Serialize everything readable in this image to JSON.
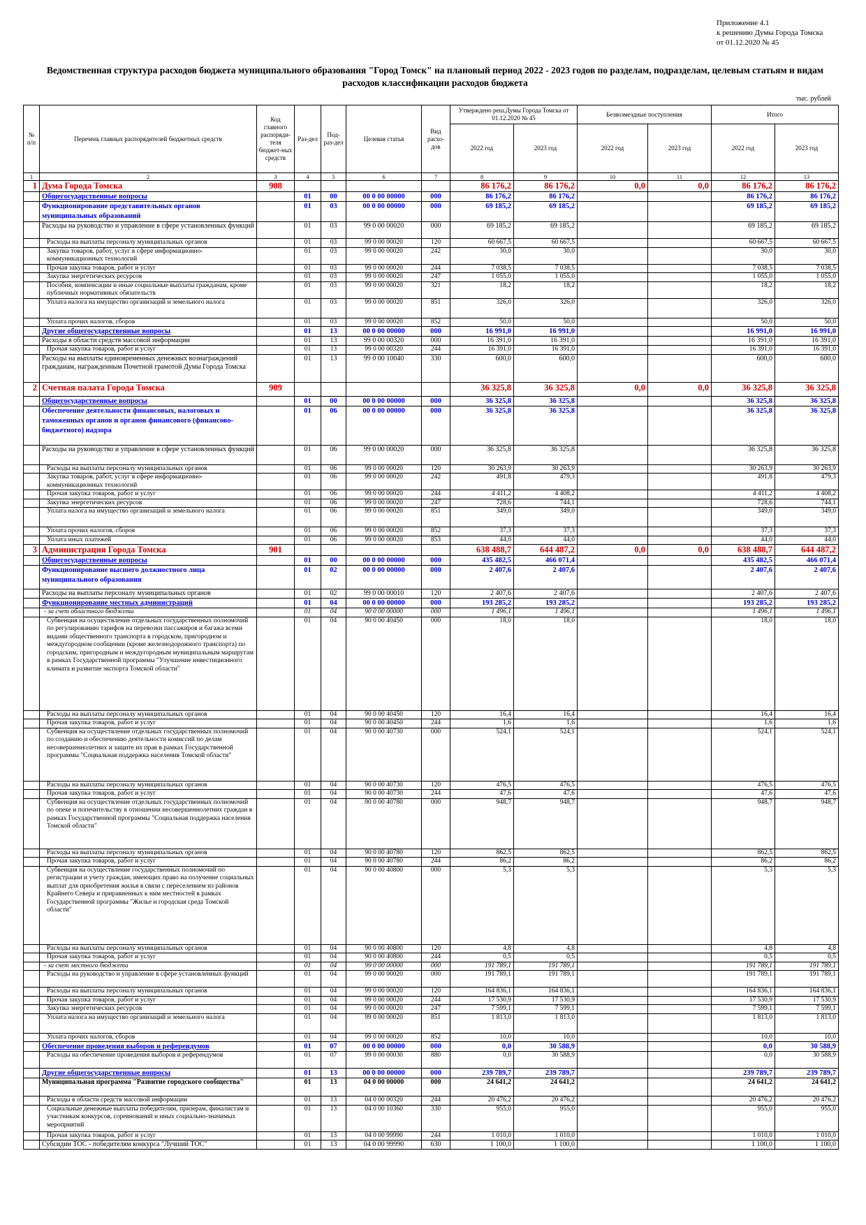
{
  "appendix": {
    "line1": "Приложение 4.1",
    "line2": "к решению Думы Города Томска",
    "line3": "от 01.12.2020 № 45"
  },
  "title": "Ведомственная структура расходов бюджета муниципального образования \"Город Томск\" на плановый период 2022 - 2023 годов по разделам, подразделам, целевым статьям и видам расходов классификации расходов бюджета",
  "units": "тыс. рублей",
  "header": {
    "num": "№ п/п",
    "name": "Перечень главных распорядителей бюджетных средств",
    "code": "Код главного распоряди-теля бюджет-ных средств",
    "razdel": "Раз-дел",
    "podrazdel": "Под-раз-дел",
    "celevaya": "Целевая статья",
    "vid": "Вид расхо-дов",
    "group_approved": "Утверждено реш.Думы Города Томска от 01.12.2020 № 45",
    "group_free": "Безвозмездные поступления",
    "group_total": "Итого",
    "y2022": "2022 год",
    "y2023": "2023 год",
    "colnums": [
      "1",
      "2",
      "3",
      "4",
      "5",
      "6",
      "7",
      "8",
      "9",
      "10",
      "11",
      "12",
      "13"
    ]
  },
  "rows": [
    {
      "t": "l0",
      "idx": "1",
      "name": "Дума Города Томска",
      "code": "908",
      "r": "",
      "p": "",
      "cs": "",
      "v": "",
      "a22": "86 176,2",
      "a23": "86 176,2",
      "f22": "0,0",
      "f23": "0,0",
      "t22": "86 176,2",
      "t23": "86 176,2"
    },
    {
      "t": "l1",
      "name": "Общегосударственные вопросы",
      "r": "01",
      "p": "00",
      "cs": "00 0 00 00000",
      "v": "000",
      "a22": "86 176,2",
      "a23": "86 176,2",
      "t22": "86 176,2",
      "t23": "86 176,2"
    },
    {
      "t": "l2",
      "name": "Функционирование представительных органов муниципальных образований",
      "r": "01",
      "p": "03",
      "cs": "00 0 00 00000",
      "v": "000",
      "a22": "69 185,2",
      "a23": "69 185,2",
      "t22": "69 185,2",
      "t23": "69 185,2",
      "h": 28
    },
    {
      "t": "l3",
      "name": "Расходы на руководство и управление в сфере установленных функций",
      "r": "01",
      "p": "03",
      "cs": "99 0 00 00020",
      "v": "000",
      "a22": "69 185,2",
      "a23": "69 185,2",
      "t22": "69 185,2",
      "t23": "69 185,2",
      "h": 24
    },
    {
      "t": "l4",
      "name": "Расходы на выплаты персоналу муниципальных органов",
      "r": "01",
      "p": "03",
      "cs": "99 0 00 00020",
      "v": "120",
      "a22": "60 667,5",
      "a23": "60 667,5",
      "t22": "60 667,5",
      "t23": "60 667,5"
    },
    {
      "t": "l4",
      "name": "Закупка товаров, работ, услуг в сфере информационно-коммуникационных технологий",
      "r": "01",
      "p": "03",
      "cs": "99 0 00 00020",
      "v": "242",
      "a22": "30,0",
      "a23": "30,0",
      "t22": "30,0",
      "t23": "30,0",
      "h": 24
    },
    {
      "t": "l4",
      "name": "Прочая закупка товаров, работ и услуг",
      "r": "01",
      "p": "03",
      "cs": "99 0 00 00020",
      "v": "244",
      "a22": "7 038,5",
      "a23": "7 038,5",
      "t22": "7 038,5",
      "t23": "7 038,5"
    },
    {
      "t": "l4",
      "name": "Закупка энергетических ресурсов",
      "r": "01",
      "p": "03",
      "cs": "99 0 00 00020",
      "v": "247",
      "a22": "1 055,0",
      "a23": "1 055,0",
      "t22": "1 055,0",
      "t23": "1 055,0"
    },
    {
      "t": "l4",
      "name": "Пособия, компенсации и иные социальные выплаты гражданам, кроме публичных нормативных обязательств",
      "r": "01",
      "p": "03",
      "cs": "99 0 00 00020",
      "v": "321",
      "a22": "18,2",
      "a23": "18,2",
      "t22": "18,2",
      "t23": "18,2",
      "h": 24
    },
    {
      "t": "l4",
      "name": "Уплата налога на имущество организаций и земельного налога",
      "r": "01",
      "p": "03",
      "cs": "99 0 00 00020",
      "v": "851",
      "a22": "326,0",
      "a23": "326,0",
      "t22": "326,0",
      "t23": "326,0",
      "h": 28
    },
    {
      "t": "l4",
      "name": "Уплата прочих налогов, сборов",
      "r": "01",
      "p": "03",
      "cs": "99 0 00 00020",
      "v": "852",
      "a22": "50,0",
      "a23": "50,0",
      "t22": "50,0",
      "t23": "50,0"
    },
    {
      "t": "l1",
      "name": "Другие общегосударственные вопросы",
      "r": "01",
      "p": "13",
      "cs": "00 0 00 00000",
      "v": "000",
      "a22": "16 991,0",
      "a23": "16 991,0",
      "t22": "16 991,0",
      "t23": "16 991,0"
    },
    {
      "t": "l3",
      "name": "Расходы в области средств массовой информации",
      "r": "01",
      "p": "13",
      "cs": "99 0 00 00320",
      "v": "000",
      "a22": "16 391,0",
      "a23": "16 391,0",
      "t22": "16 391,0",
      "t23": "16 391,0"
    },
    {
      "t": "l4",
      "name": "Прочая закупка товаров, работ и услуг",
      "r": "01",
      "p": "13",
      "cs": "99 0 00 00320",
      "v": "244",
      "a22": "16 391,0",
      "a23": "16 391,0",
      "t22": "16 391,0",
      "t23": "16 391,0"
    },
    {
      "t": "l3",
      "name": "Расходы на выплаты единовременных денежных вознаграждений гражданам, награжденным Почетной грамотой Думы Города Томска",
      "r": "01",
      "p": "13",
      "cs": "99 0 00 10040",
      "v": "330",
      "a22": "600,0",
      "a23": "600,0",
      "t22": "600,0",
      "t23": "600,0",
      "h": 40
    },
    {
      "t": "l0",
      "idx": "2",
      "name": "Счетная палата Города Томска",
      "code": "909",
      "r": "",
      "p": "",
      "cs": "",
      "v": "",
      "a22": "36 325,8",
      "a23": "36 325,8",
      "f22": "0,0",
      "f23": "0,0",
      "t22": "36 325,8",
      "t23": "36 325,8",
      "h": 20
    },
    {
      "t": "l1",
      "name": "Общегосударственные вопросы",
      "r": "01",
      "p": "00",
      "cs": "00 0 00 00000",
      "v": "000",
      "a22": "36 325,8",
      "a23": "36 325,8",
      "t22": "36 325,8",
      "t23": "36 325,8"
    },
    {
      "t": "l2",
      "name": "Обеспечение деятельности финансовых, налоговых и таможенных органов и органов финансового (финансово-бюджетного) надзора",
      "r": "01",
      "p": "06",
      "cs": "00 0 00 00000",
      "v": "000",
      "a22": "36 325,8",
      "a23": "36 325,8",
      "t22": "36 325,8",
      "t23": "36 325,8",
      "h": 56
    },
    {
      "t": "l3",
      "name": "Расходы на руководство и управление в сфере установленных функций",
      "r": "01",
      "p": "06",
      "cs": "99 0 00 00020",
      "v": "000",
      "a22": "36 325,8",
      "a23": "36 325,8",
      "t22": "36 325,8",
      "t23": "36 325,8",
      "h": 28
    },
    {
      "t": "l4",
      "name": "Расходы на выплаты персоналу муниципальных органов",
      "r": "01",
      "p": "06",
      "cs": "99 0 00 00020",
      "v": "120",
      "a22": "30 263,9",
      "a23": "30 263,9",
      "t22": "30 263,9",
      "t23": "30 263,9"
    },
    {
      "t": "l4",
      "name": "Закупка товаров, работ, услуг в сфере информационно-коммуникационных технологий",
      "r": "01",
      "p": "06",
      "cs": "99 0 00 00020",
      "v": "242",
      "a22": "491,8",
      "a23": "479,3",
      "t22": "491,8",
      "t23": "479,3",
      "h": 24
    },
    {
      "t": "l4",
      "name": "Прочая закупка товаров, работ и услуг",
      "r": "01",
      "p": "06",
      "cs": "99 0 00 00020",
      "v": "244",
      "a22": "4 411,2",
      "a23": "4 408,2",
      "t22": "4 411,2",
      "t23": "4 408,2"
    },
    {
      "t": "l4",
      "name": "Закупка энергетических ресурсов",
      "r": "01",
      "p": "06",
      "cs": "99 0 00 00020",
      "v": "247",
      "a22": "728,6",
      "a23": "744,1",
      "t22": "728,6",
      "t23": "744,1"
    },
    {
      "t": "l4",
      "name": "Уплата налога на имущество организаций и земельного налога",
      "r": "01",
      "p": "06",
      "cs": "99 0 00 00020",
      "v": "851",
      "a22": "349,0",
      "a23": "349,0",
      "t22": "349,0",
      "t23": "349,0",
      "h": 28
    },
    {
      "t": "l4",
      "name": "Уплата прочих налогов, сборов",
      "r": "01",
      "p": "06",
      "cs": "99 0 00 00020",
      "v": "852",
      "a22": "37,3",
      "a23": "37,3",
      "t22": "37,3",
      "t23": "37,3"
    },
    {
      "t": "l4",
      "name": "Уплата иных платежей",
      "r": "01",
      "p": "06",
      "cs": "99 0 00 00020",
      "v": "853",
      "a22": "44,0",
      "a23": "44,0",
      "t22": "44,0",
      "t23": "44,0"
    },
    {
      "t": "l0",
      "idx": "3",
      "name": "Администрация Города Томска",
      "code": "901",
      "r": "",
      "p": "",
      "cs": "",
      "v": "",
      "a22": "638 488,7",
      "a23": "644 487,2",
      "f22": "0,0",
      "f23": "0,0",
      "t22": "638 488,7",
      "t23": "644 487,2"
    },
    {
      "t": "l1",
      "name": "Общегосударственные вопросы",
      "r": "01",
      "p": "00",
      "cs": "00 0 00 00000",
      "v": "000",
      "a22": "435 482,5",
      "a23": "466 071,4",
      "t22": "435 482,5",
      "t23": "466 071,4"
    },
    {
      "t": "l2",
      "name": "Функционирование высшего должностного лица муниципального образования",
      "r": "01",
      "p": "02",
      "cs": "00 0 00 00000",
      "v": "000",
      "a22": "2 407,6",
      "a23": "2 407,6",
      "t22": "2 407,6",
      "t23": "2 407,6",
      "h": 34
    },
    {
      "t": "l3",
      "name": "Расходы на выплаты персоналу муниципальных органов",
      "r": "01",
      "p": "02",
      "cs": "99 0 00 00010",
      "v": "120",
      "a22": "2 407,6",
      "a23": "2 407,6",
      "t22": "2 407,6",
      "t23": "2 407,6"
    },
    {
      "t": "l1",
      "name": "Функционирование местных администраций",
      "r": "01",
      "p": "04",
      "cs": "00 0 00 00000",
      "v": "000",
      "a22": "193 285,2",
      "a23": "193 285,2",
      "t22": "193 285,2",
      "t23": "193 285,2"
    },
    {
      "t": "it",
      "name": "- за счет областного бюджета",
      "r": "01",
      "p": "04",
      "cs": "90 0 00 00000",
      "v": "000",
      "a22": "1 496,1",
      "a23": "1 496,1",
      "t22": "1 496,1",
      "t23": "1 496,1"
    },
    {
      "t": "l4",
      "name": "Субвенция на осуществление отдельных государственных полномочий по регулированию тарифов на перевозки пассажиров и багажа всеми видами общественного транспорта в городском, пригородном и междугородном сообщении (кроме железнодорожного транспорта) по городским, пригородным и междугородным муниципальным маршрутам в рамках Государственной программы \"Улучшение инвестиционного климата и развитие экспорта Томской области\"",
      "r": "01",
      "p": "04",
      "cs": "90 0 00 40450",
      "v": "000",
      "a22": "18,0",
      "a23": "18,0",
      "t22": "18,0",
      "t23": "18,0",
      "h": 134
    },
    {
      "t": "l4",
      "name": "Расходы на выплаты персоналу муниципальных органов",
      "r": "01",
      "p": "04",
      "cs": "90 0 00 40450",
      "v": "120",
      "a22": "16,4",
      "a23": "16,4",
      "t22": "16,4",
      "t23": "16,4"
    },
    {
      "t": "l4",
      "name": "Прочая закупка товаров, работ и услуг",
      "r": "01",
      "p": "04",
      "cs": "90 0 00 40450",
      "v": "244",
      "a22": "1,6",
      "a23": "1,6",
      "t22": "1,6",
      "t23": "1,6"
    },
    {
      "t": "l4",
      "name": "Субвенция на осуществление отдельных государственных полномочий по созданию и обеспечению деятельности комиссий по делам несовершеннолетних и защите их прав в рамках Государственной программы \"Социальная поддержка населения Томской области\"",
      "r": "01",
      "p": "04",
      "cs": "90 0 00 40730",
      "v": "000",
      "a22": "524,1",
      "a23": "524,1",
      "t22": "524,1",
      "t23": "524,1",
      "h": 76
    },
    {
      "t": "l4",
      "name": "Расходы на выплаты персоналу муниципальных органов",
      "r": "01",
      "p": "04",
      "cs": "90 0 00 40730",
      "v": "120",
      "a22": "476,5",
      "a23": "476,5",
      "t22": "476,5",
      "t23": "476,5"
    },
    {
      "t": "l4",
      "name": "Прочая закупка товаров, работ и услуг",
      "r": "01",
      "p": "04",
      "cs": "90 0 00 40730",
      "v": "244",
      "a22": "47,6",
      "a23": "47,6",
      "t22": "47,6",
      "t23": "47,6"
    },
    {
      "t": "l4",
      "name": "Субвенция на осуществление отдельных государственных полномочий по опеке и попечительству в отношении несовершеннолетних граждан в рамках Государственной программы \"Социальная поддержка населения Томской области\"",
      "r": "01",
      "p": "04",
      "cs": "90 0 00 40780",
      "v": "000",
      "a22": "948,7",
      "a23": "948,7",
      "t22": "948,7",
      "t23": "948,7",
      "h": 72
    },
    {
      "t": "l4",
      "name": "Расходы на выплаты персоналу муниципальных органов",
      "r": "01",
      "p": "04",
      "cs": "90 0 00 40780",
      "v": "120",
      "a22": "862,5",
      "a23": "862,5",
      "t22": "862,5",
      "t23": "862,5"
    },
    {
      "t": "l4",
      "name": "Прочая закупка товаров, работ и услуг",
      "r": "01",
      "p": "04",
      "cs": "90 0 00 40780",
      "v": "244",
      "a22": "86,2",
      "a23": "86,2",
      "t22": "86,2",
      "t23": "86,2"
    },
    {
      "t": "l4",
      "name": "Субвенция на осуществление государственных полномочий по регистрации и учету граждан, имеющих право на получение социальных выплат для приобретения жилья в связи с переселением из районов Крайнего Севера и приравненных к ним местностей в рамках Государственной программы \"Жилье и городская среда Томской области\"",
      "r": "01",
      "p": "04",
      "cs": "90 0 00 40800",
      "v": "000",
      "a22": "5,3",
      "a23": "5,3",
      "t22": "5,3",
      "t23": "5,3",
      "h": 112
    },
    {
      "t": "l4",
      "name": "Расходы на выплаты персоналу муниципальных органов",
      "r": "01",
      "p": "04",
      "cs": "90 0 00 40800",
      "v": "120",
      "a22": "4,8",
      "a23": "4,8",
      "t22": "4,8",
      "t23": "4,8"
    },
    {
      "t": "l4",
      "name": "Прочая закупка товаров, работ и услуг",
      "r": "01",
      "p": "04",
      "cs": "90 0 00 40800",
      "v": "244",
      "a22": "0,5",
      "a23": "0,5",
      "t22": "0,5",
      "t23": "0,5"
    },
    {
      "t": "it",
      "name": "- за счет местного бюджета",
      "r": "01",
      "p": "04",
      "cs": "99 0 00 00000",
      "v": "000",
      "a22": "191 789,1",
      "a23": "191 789,1",
      "t22": "191 789,1",
      "t23": "191 789,1"
    },
    {
      "t": "l4",
      "name": "Расходы на руководство и управление в сфере установленных функций",
      "r": "01",
      "p": "04",
      "cs": "99 0 00 00020",
      "v": "000",
      "a22": "191 789,1",
      "a23": "191 789,1",
      "t22": "191 789,1",
      "t23": "191 789,1",
      "h": 24
    },
    {
      "t": "l4",
      "name": "Расходы на выплаты персоналу муниципальных органов",
      "r": "01",
      "p": "04",
      "cs": "99 0 00 00020",
      "v": "120",
      "a22": "164 836,1",
      "a23": "164 836,1",
      "t22": "164 836,1",
      "t23": "164 836,1"
    },
    {
      "t": "l4",
      "name": "Прочая закупка товаров, работ и услуг",
      "r": "01",
      "p": "04",
      "cs": "99 0 00 00020",
      "v": "244",
      "a22": "17 530,9",
      "a23": "17 530,9",
      "t22": "17 530,9",
      "t23": "17 530,9"
    },
    {
      "t": "l4",
      "name": "Закупка энергетических ресурсов",
      "r": "01",
      "p": "04",
      "cs": "99 0 00 00020",
      "v": "247",
      "a22": "7 599,1",
      "a23": "7 599,1",
      "t22": "7 599,1",
      "t23": "7 599,1"
    },
    {
      "t": "l4",
      "name": "Уплата налога на имущество организаций и земельного налога",
      "r": "01",
      "p": "04",
      "cs": "99 0 00 00020",
      "v": "851",
      "a22": "1 813,0",
      "a23": "1 813,0",
      "t22": "1 813,0",
      "t23": "1 813,0",
      "h": 28
    },
    {
      "t": "l4",
      "name": "Уплата прочих налогов, сборов",
      "r": "01",
      "p": "04",
      "cs": "99 0 00 00020",
      "v": "852",
      "a22": "10,0",
      "a23": "10,0",
      "t22": "10,0",
      "t23": "10,0"
    },
    {
      "t": "l1",
      "name": "Обеспечение проведения выборов и референдумов",
      "r": "01",
      "p": "07",
      "cs": "00 0 00 00000",
      "v": "000",
      "a22": "0,0",
      "a23": "30 588,9",
      "t22": "0,0",
      "t23": "30 588,9"
    },
    {
      "t": "l4",
      "name": "Расходы на обеспечение проведения выборов и референдумов",
      "r": "01",
      "p": "07",
      "cs": "99 0 00 00030",
      "v": "880",
      "a22": "0,0",
      "a23": "30 588,9",
      "t22": "0,0",
      "t23": "30 588,9",
      "h": 24
    },
    {
      "t": "l1",
      "name": "Другие общегосударственные вопросы",
      "r": "01",
      "p": "13",
      "cs": "00 0 00 00000",
      "v": "000",
      "a22": "239 789,7",
      "a23": "239 789,7",
      "t22": "239 789,7",
      "t23": "239 789,7"
    },
    {
      "t": "prog",
      "name": "Муниципальная программа \"Развитие городского сообщества\"",
      "r": "01",
      "p": "13",
      "cs": "04 0 00 00000",
      "v": "000",
      "a22": "24 641,2",
      "a23": "24 641,2",
      "t22": "24 641,2",
      "t23": "24 641,2",
      "h": 26
    },
    {
      "t": "l4",
      "name": "Расходы в области средств массовой информации",
      "r": "01",
      "p": "13",
      "cs": "04 0 00 00320",
      "v": "244",
      "a22": "20 476,2",
      "a23": "20 476,2",
      "t22": "20 476,2",
      "t23": "20 476,2"
    },
    {
      "t": "l4",
      "name": "Социальные денежные выплаты победителям, призерам, финалистам и участникам конкурсов, соревнований и иных социально-значимых мероприятий",
      "r": "01",
      "p": "13",
      "cs": "04 0 00 10360",
      "v": "330",
      "a22": "955,0",
      "a23": "955,0",
      "t22": "955,0",
      "t23": "955,0",
      "h": 38
    },
    {
      "t": "l4",
      "name": "Прочая закупка товаров, работ и услуг",
      "r": "01",
      "p": "13",
      "cs": "04 0 00 99990",
      "v": "244",
      "a22": "1 010,0",
      "a23": "1 010,0",
      "t22": "1 010,0",
      "t23": "1 010,0"
    },
    {
      "t": "l3",
      "name": "Субсидии ТОС - победителям конкурса \"Лучший ТОС\"",
      "r": "01",
      "p": "13",
      "cs": "04 0 00 99990",
      "v": "630",
      "a22": "1 100,0",
      "a23": "1 100,0",
      "t22": "1 100,0",
      "t23": "1 100,0"
    }
  ]
}
